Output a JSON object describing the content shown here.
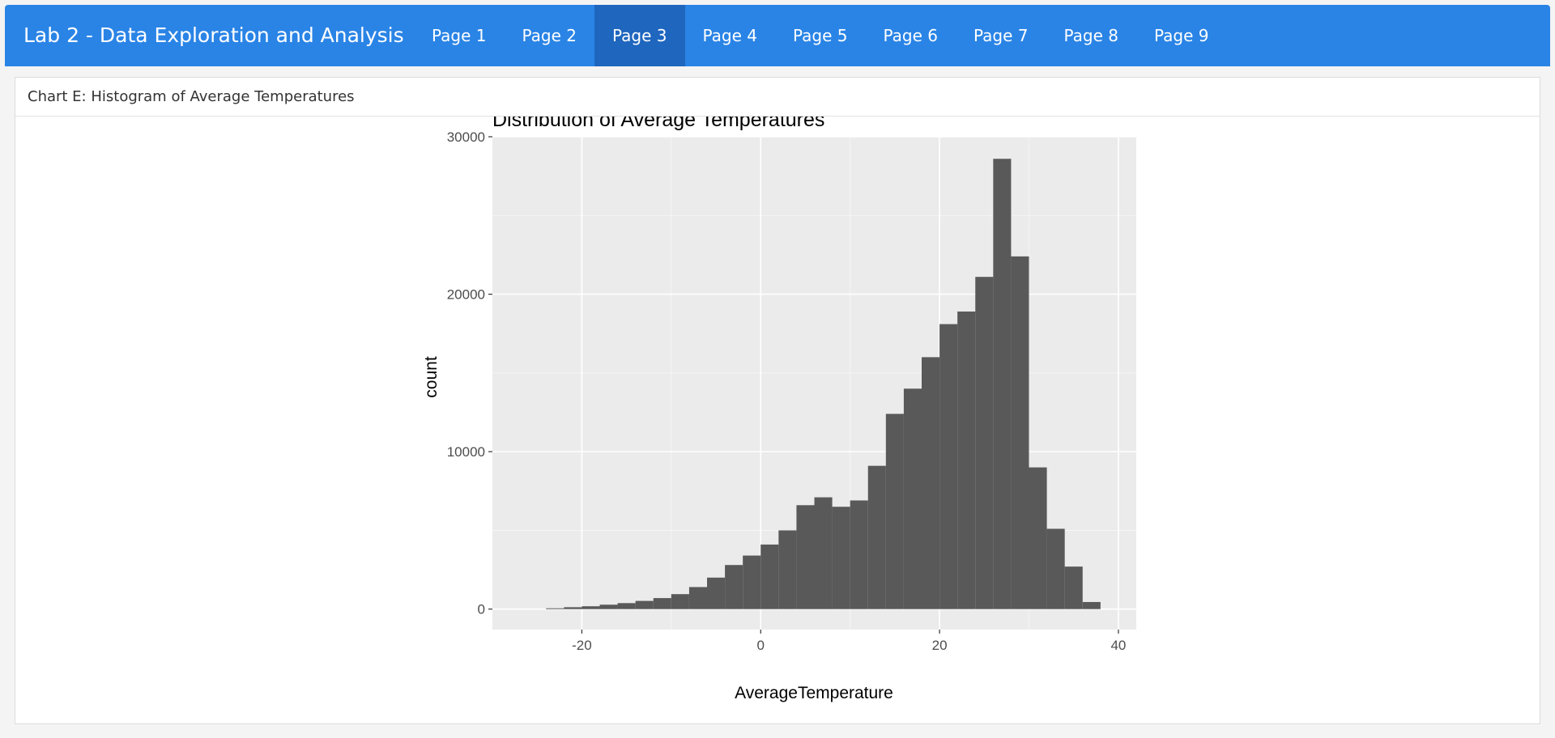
{
  "app": {
    "title": "Lab 2 - Data Exploration and Analysis",
    "tabs": [
      {
        "label": "Page 1",
        "active": false
      },
      {
        "label": "Page 2",
        "active": false
      },
      {
        "label": "Page 3",
        "active": true
      },
      {
        "label": "Page 4",
        "active": false
      },
      {
        "label": "Page 5",
        "active": false
      },
      {
        "label": "Page 6",
        "active": false
      },
      {
        "label": "Page 7",
        "active": false
      },
      {
        "label": "Page 8",
        "active": false
      },
      {
        "label": "Page 9",
        "active": false
      }
    ]
  },
  "card": {
    "header": "Chart E: Histogram of Average Temperatures"
  },
  "colors": {
    "navbar": "#2a84e6",
    "active_tab": "#1f66bf",
    "panel": "#ebebeb",
    "grid": "#ffffff",
    "bar": "#595959"
  },
  "chart_data": {
    "type": "bar",
    "title": "Distribution of Average Temperatures",
    "xlabel": "AverageTemperature",
    "ylabel": "count",
    "xlim": [
      -30,
      42
    ],
    "ylim": [
      -1300,
      30000
    ],
    "x_ticks": [
      -20,
      0,
      20,
      40
    ],
    "y_ticks": [
      0,
      10000,
      20000,
      30000
    ],
    "grid": true,
    "bin_width": 2,
    "bins": [
      {
        "x0": -24,
        "x1": -22,
        "count": 50
      },
      {
        "x0": -22,
        "x1": -20,
        "count": 120
      },
      {
        "x0": -20,
        "x1": -18,
        "count": 180
      },
      {
        "x0": -18,
        "x1": -16,
        "count": 280
      },
      {
        "x0": -16,
        "x1": -14,
        "count": 380
      },
      {
        "x0": -14,
        "x1": -12,
        "count": 520
      },
      {
        "x0": -12,
        "x1": -10,
        "count": 700
      },
      {
        "x0": -10,
        "x1": -8,
        "count": 950
      },
      {
        "x0": -8,
        "x1": -6,
        "count": 1400
      },
      {
        "x0": -6,
        "x1": -4,
        "count": 2000
      },
      {
        "x0": -4,
        "x1": -2,
        "count": 2800
      },
      {
        "x0": -2,
        "x1": 0,
        "count": 3400
      },
      {
        "x0": 0,
        "x1": 2,
        "count": 4100
      },
      {
        "x0": 2,
        "x1": 4,
        "count": 5000
      },
      {
        "x0": 4,
        "x1": 6,
        "count": 6600
      },
      {
        "x0": 6,
        "x1": 8,
        "count": 7100
      },
      {
        "x0": 8,
        "x1": 10,
        "count": 6500
      },
      {
        "x0": 10,
        "x1": 12,
        "count": 6900
      },
      {
        "x0": 12,
        "x1": 14,
        "count": 9100
      },
      {
        "x0": 14,
        "x1": 16,
        "count": 12400
      },
      {
        "x0": 16,
        "x1": 18,
        "count": 14000
      },
      {
        "x0": 18,
        "x1": 20,
        "count": 16000
      },
      {
        "x0": 20,
        "x1": 22,
        "count": 18100
      },
      {
        "x0": 22,
        "x1": 24,
        "count": 18900
      },
      {
        "x0": 24,
        "x1": 26,
        "count": 21100
      },
      {
        "x0": 26,
        "x1": 28,
        "count": 28600
      },
      {
        "x0": 28,
        "x1": 30,
        "count": 22400
      },
      {
        "x0": 30,
        "x1": 32,
        "count": 9000
      },
      {
        "x0": 32,
        "x1": 34,
        "count": 5100
      },
      {
        "x0": 34,
        "x1": 36,
        "count": 2700
      },
      {
        "x0": 36,
        "x1": 38,
        "count": 450
      }
    ]
  }
}
